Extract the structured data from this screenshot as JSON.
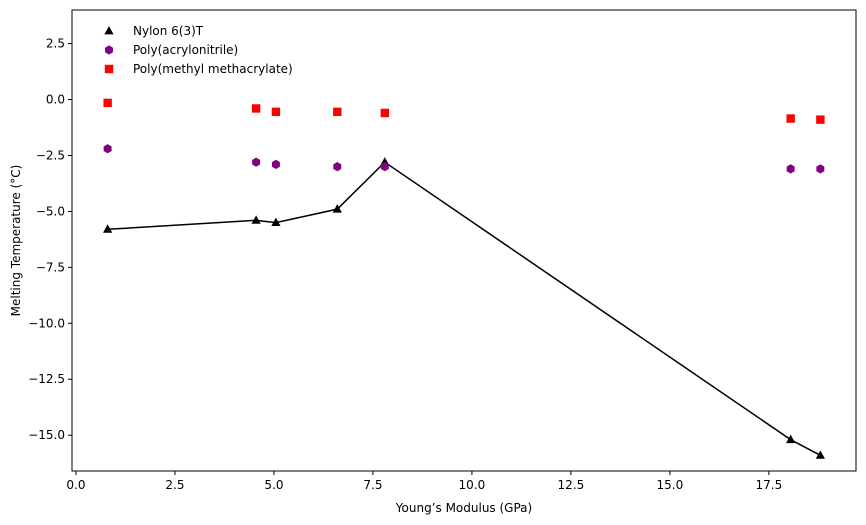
{
  "chart_data": {
    "type": "scatter",
    "xlabel": "Young’s Modulus (GPa)",
    "ylabel": "Melting Temperature (°C)",
    "xlim": [
      -0.1,
      19.7
    ],
    "ylim": [
      -16.6,
      4.0
    ],
    "x_ticks": [
      0.0,
      2.5,
      5.0,
      7.5,
      10.0,
      12.5,
      15.0,
      17.5
    ],
    "x_tick_labels": [
      "0.0",
      "2.5",
      "5.0",
      "7.5",
      "10.0",
      "12.5",
      "15.0",
      "17.5"
    ],
    "y_ticks": [
      2.5,
      0.0,
      -2.5,
      -5.0,
      -7.5,
      -10.0,
      -12.5,
      -15.0
    ],
    "y_tick_labels": [
      "2.5",
      "0.0",
      "−2.5",
      "−5.0",
      "−7.5",
      "−10.0",
      "−12.5",
      "−15.0"
    ],
    "grid": false,
    "legend_position": "upper-left",
    "series": [
      {
        "name": "Nylon 6(3)T",
        "marker": "triangle",
        "color": "#000000",
        "line": true,
        "x": [
          0.8,
          4.55,
          5.05,
          6.6,
          7.8,
          18.05,
          18.8
        ],
        "y": [
          -5.8,
          -5.4,
          -5.5,
          -4.9,
          -2.8,
          -15.2,
          -15.9
        ]
      },
      {
        "name": "Poly(acrylonitrile)",
        "marker": "hexagon",
        "color": "#800080",
        "line": false,
        "x": [
          0.8,
          4.55,
          5.05,
          6.6,
          7.8,
          18.05,
          18.8
        ],
        "y": [
          -2.2,
          -2.8,
          -2.9,
          -3.0,
          -3.0,
          -3.1,
          -3.1
        ]
      },
      {
        "name": "Poly(methyl methacrylate)",
        "marker": "square",
        "color": "#ff0000",
        "line": false,
        "x": [
          0.8,
          4.55,
          5.05,
          6.6,
          7.8,
          18.05,
          18.8
        ],
        "y": [
          -0.15,
          -0.4,
          -0.55,
          -0.55,
          -0.6,
          -0.85,
          -0.9
        ]
      }
    ]
  }
}
